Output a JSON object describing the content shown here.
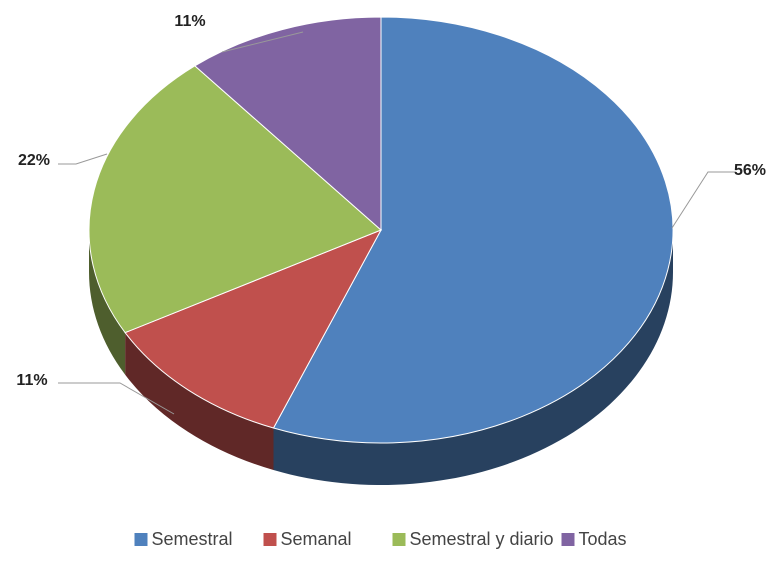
{
  "chart_data": {
    "type": "pie",
    "categories": [
      "Semestral",
      "Semanal",
      "Semestral y diario",
      "Todas"
    ],
    "values": [
      56,
      11,
      22,
      11
    ],
    "value_labels": [
      "56%",
      "11%",
      "22%",
      "11%"
    ],
    "colors": [
      "#4f81bd",
      "#c0504d",
      "#9bbb59",
      "#8064a2"
    ],
    "legend": "bottom"
  }
}
